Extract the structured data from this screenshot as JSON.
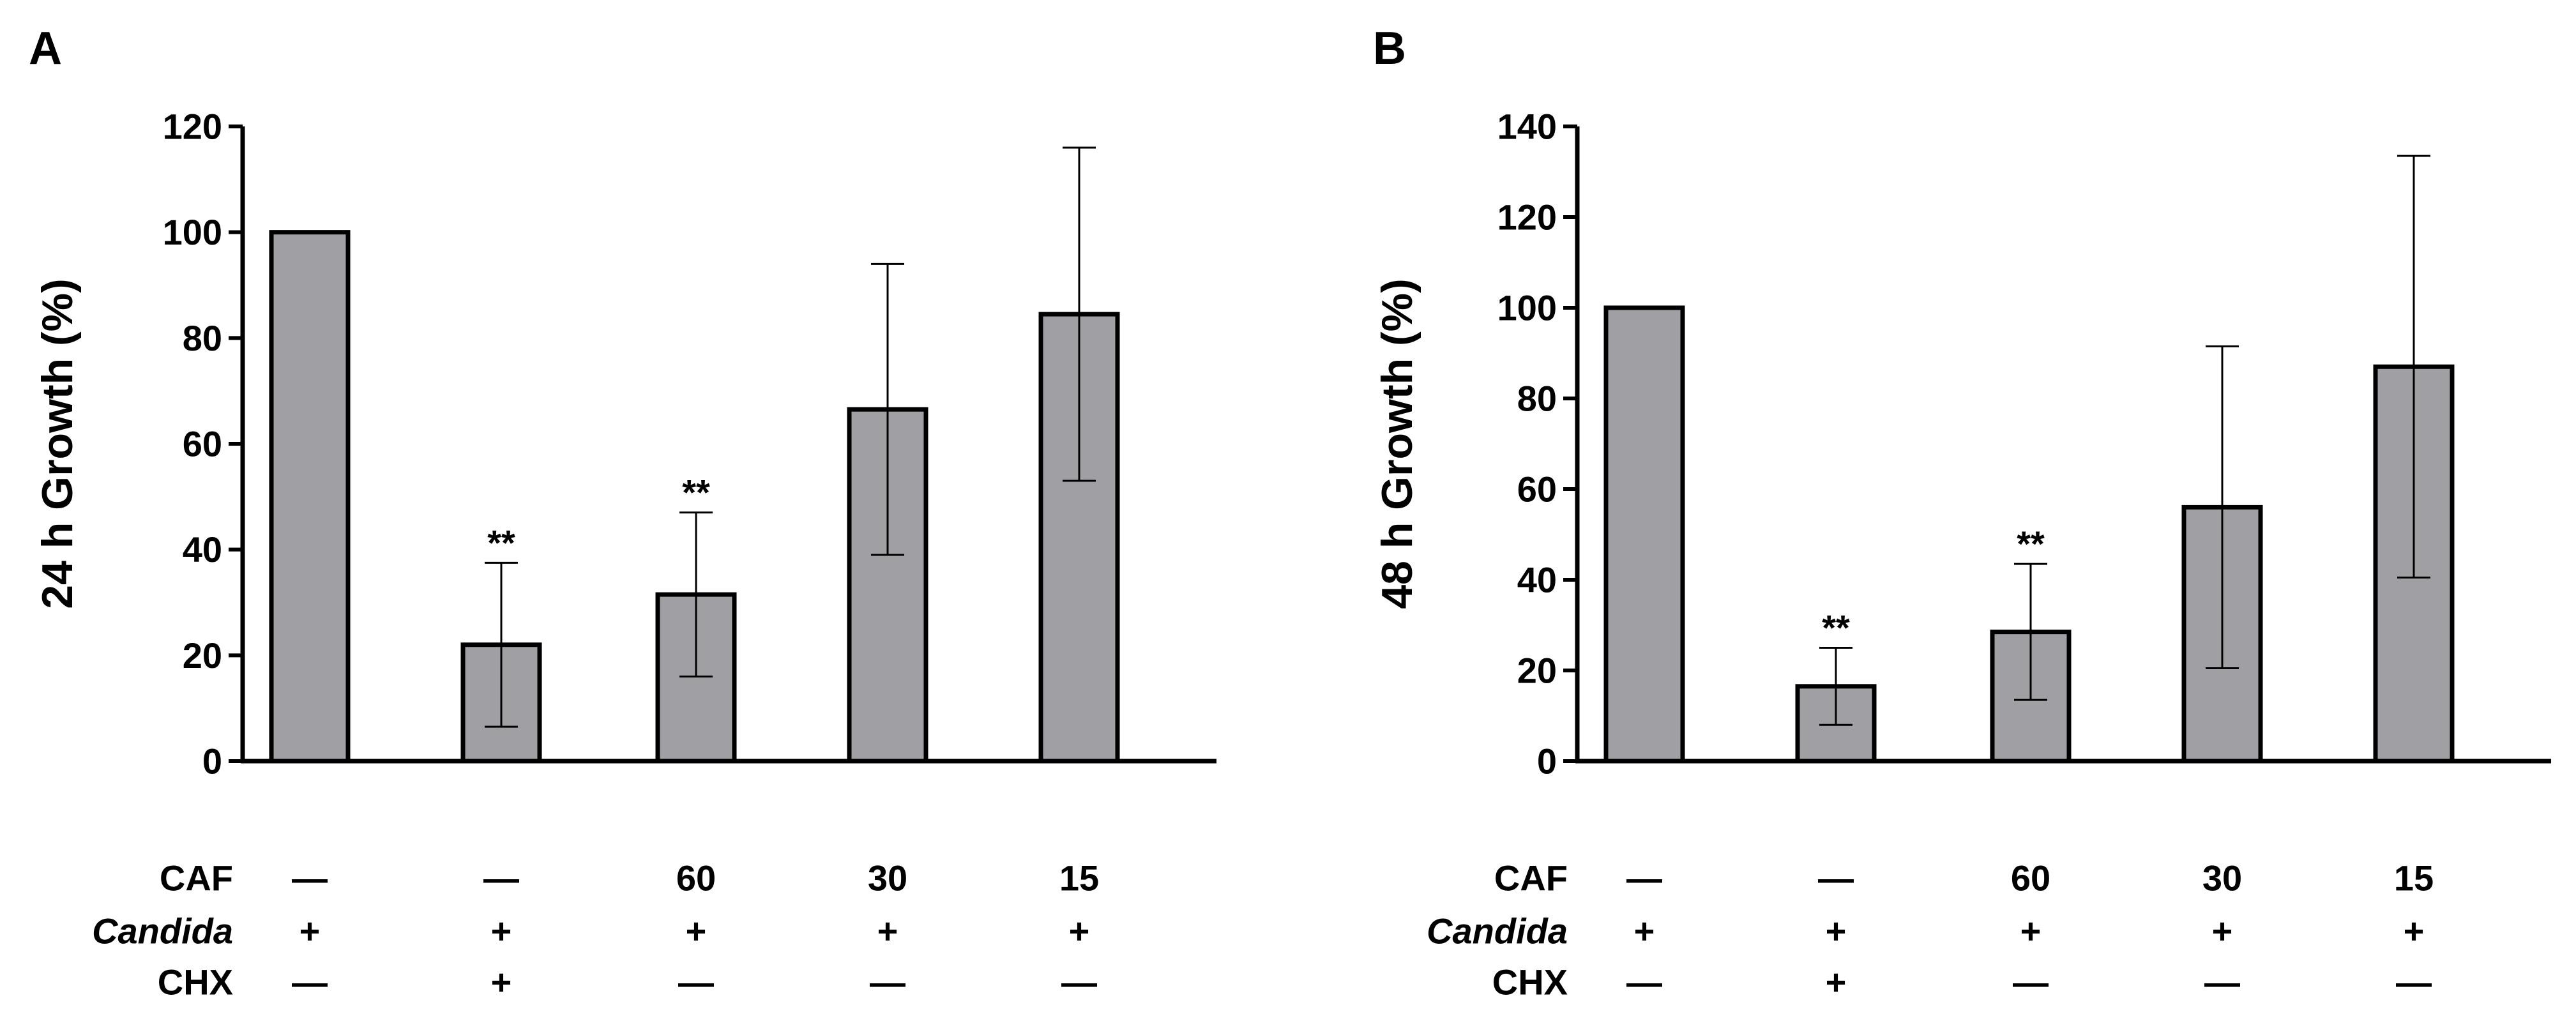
{
  "chart_data": [
    {
      "panel": "A",
      "type": "bar",
      "ylabel": "24 h Growth (%)",
      "ylim": [
        0,
        120
      ],
      "yticks": [
        0,
        20,
        40,
        60,
        80,
        100,
        120
      ],
      "bar_color": "#a0a0a4",
      "values": [
        100,
        22,
        31.5,
        66.5,
        84.5
      ],
      "errors": [
        0,
        15.5,
        15.5,
        27.5,
        31.5
      ],
      "annotations": [
        "",
        "**",
        "**",
        "",
        ""
      ],
      "table": [
        {
          "label": "CAF",
          "italic": false,
          "cells": [
            "—",
            "—",
            "60",
            "30",
            "15"
          ]
        },
        {
          "label": "Candida",
          "italic": true,
          "cells": [
            "+",
            "+",
            "+",
            "+",
            "+"
          ]
        },
        {
          "label": "CHX",
          "italic": false,
          "cells": [
            "—",
            "+",
            "—",
            "—",
            "—"
          ]
        }
      ]
    },
    {
      "panel": "B",
      "type": "bar",
      "ylabel": "48 h Growth (%)",
      "ylim": [
        0,
        140
      ],
      "yticks": [
        0,
        20,
        40,
        60,
        80,
        100,
        120,
        140
      ],
      "bar_color": "#a0a0a4",
      "values": [
        100,
        16.5,
        28.5,
        56,
        87
      ],
      "errors": [
        0,
        8.5,
        15,
        35.5,
        46.5
      ],
      "annotations": [
        "",
        "**",
        "**",
        "",
        ""
      ],
      "table": [
        {
          "label": "CAF",
          "italic": false,
          "cells": [
            "—",
            "—",
            "60",
            "30",
            "15"
          ]
        },
        {
          "label": "Candida",
          "italic": true,
          "cells": [
            "+",
            "+",
            "+",
            "+",
            "+"
          ]
        },
        {
          "label": "CHX",
          "italic": false,
          "cells": [
            "—",
            "+",
            "—",
            "—",
            "—"
          ]
        }
      ]
    }
  ]
}
